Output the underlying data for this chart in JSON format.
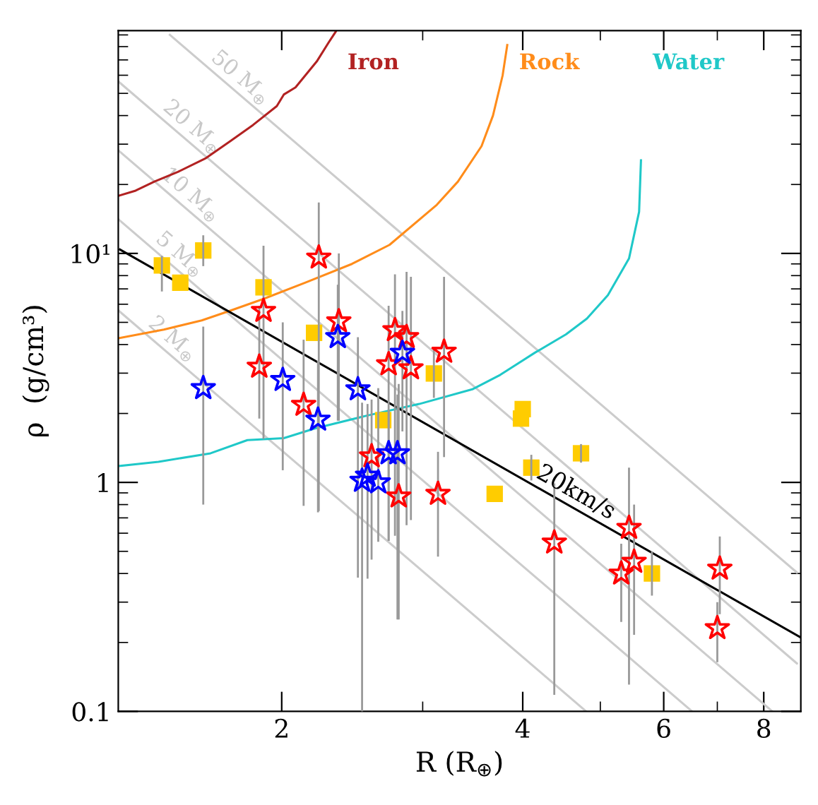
{
  "chart_data": {
    "type": "scatter",
    "xlabel": "R (R$_{⊕}$)",
    "ylabel": "ρ  (g/cm³)",
    "log": "xy",
    "xlim": [
      1.25,
      8.9
    ],
    "ylim": [
      0.1,
      94
    ],
    "xticks": [
      2,
      4,
      6,
      8
    ],
    "yticks": [
      0.1,
      1,
      {
        "value": 10,
        "label": "10¹"
      }
    ],
    "annotations": [
      {
        "text": "20km/s",
        "x": 4.66,
        "y": 0.755
      }
    ],
    "series": [
      {
        "type": "line",
        "name": "2 M$_{⊕}$",
        "color": "#cccccc",
        "x": [
          1.25,
          4.8
        ],
        "values": [
          5.64,
          0.1
        ]
      },
      {
        "type": "line",
        "name": "5 M$_{⊕}$",
        "color": "#cccccc",
        "x": [
          1.25,
          6.51
        ],
        "values": [
          14.1,
          0.1
        ]
      },
      {
        "type": "line",
        "name": "10 M$_{⊕}$",
        "color": "#cccccc",
        "x": [
          1.25,
          8.2
        ],
        "values": [
          28.2,
          0.1
        ]
      },
      {
        "type": "line",
        "name": "20 M$_{⊕}$",
        "color": "#cccccc",
        "x": [
          1.25,
          8.8
        ],
        "values": [
          56.4,
          0.162
        ]
      },
      {
        "type": "line",
        "name": "50 M$_{⊕}$",
        "color": "#cccccc",
        "x": [
          1.45,
          8.8
        ],
        "values": [
          90,
          0.404
        ]
      },
      {
        "type": "line",
        "name": "Iron",
        "color": "#b22222",
        "x": [
          1.254,
          1.314,
          1.387,
          1.484,
          1.609,
          1.722,
          1.842,
          1.972,
          2.012,
          2.081,
          2.212,
          2.288,
          2.336
        ],
        "values": [
          17.9,
          18.8,
          20.6,
          22.7,
          26.1,
          30.8,
          36.4,
          44.0,
          49.4,
          53.1,
          68.9,
          83.2,
          93
        ]
      },
      {
        "type": "line",
        "name": "Rock",
        "color": "#ff8c1a",
        "x": [
          1.254,
          1.425,
          1.589,
          1.722,
          1.893,
          2.139,
          2.448,
          2.727,
          3.124,
          3.32,
          3.553,
          3.672,
          3.775,
          3.826
        ],
        "values": [
          4.27,
          4.65,
          5.1,
          5.61,
          6.31,
          7.45,
          9.0,
          10.9,
          16.3,
          20.6,
          29.4,
          40.0,
          59.8,
          81.3
        ]
      },
      {
        "type": "line",
        "name": "Water",
        "color": "#1fc8c8",
        "x": [
          1.256,
          1.403,
          1.63,
          1.812,
          2.012,
          2.2,
          2.56,
          2.97,
          3.46,
          3.75,
          4.14,
          4.53,
          4.81,
          5.11,
          5.43,
          5.59,
          5.62
        ],
        "values": [
          1.18,
          1.23,
          1.34,
          1.53,
          1.56,
          1.72,
          1.96,
          2.2,
          2.55,
          2.95,
          3.68,
          4.43,
          5.19,
          6.57,
          9.5,
          15.2,
          25.5
        ]
      },
      {
        "type": "line",
        "color": "#000000",
        "x": [
          1.256,
          8.9
        ],
        "values": [
          10.4,
          0.21
        ]
      },
      {
        "marker": "square",
        "color": "#ffcc00",
        "x": [
          1.417,
          1.494,
          1.596,
          1.898,
          2.195,
          2.678,
          3.098,
          3.69,
          4.0,
          3.98,
          4.1,
          4.73,
          5.8
        ],
        "values": [
          8.87,
          7.45,
          10.3,
          7.11,
          4.5,
          1.87,
          2.99,
          0.891,
          2.09,
          1.9,
          1.16,
          1.34,
          0.4
        ],
        "errors": [
          [
            6.82,
            9.75
          ],
          null,
          [
            8.8,
            12.0
          ],
          null,
          null,
          null,
          [
            2.34,
            3.8
          ],
          null,
          null,
          null,
          [
            1.02,
            1.32
          ],
          [
            1.22,
            1.47
          ],
          [
            0.32,
            0.5
          ]
        ]
      },
      {
        "marker": "star",
        "color": "#ff0000",
        "x": [
          2.225,
          1.898,
          1.875,
          2.13,
          2.357,
          2.59,
          2.77,
          2.72,
          2.864,
          2.9,
          2.8,
          3.135,
          3.19,
          4.38,
          5.31,
          5.43,
          5.51,
          7.05,
          7.0
        ],
        "values": [
          9.59,
          5.61,
          3.2,
          2.18,
          5.05,
          1.3,
          4.62,
          3.28,
          4.31,
          3.15,
          0.868,
          0.891,
          3.72,
          0.546,
          0.4,
          0.633,
          0.45,
          0.42,
          0.231
        ],
        "errors": [
          [
            0.75,
            16.7
          ],
          [
            1.55,
            10.8
          ],
          [
            1.9,
            5.9
          ],
          [
            0.79,
            4.2
          ],
          [
            1.86,
            10.0
          ],
          [
            0.46,
            2.3
          ],
          [
            0.585,
            8.1
          ],
          [
            0.555,
            5.91
          ],
          [
            0.65,
            8.3
          ],
          [
            0.685,
            7.9
          ],
          [
            0.252,
            2.69
          ],
          [
            0.474,
            1.36
          ],
          [
            1.29,
            7.9
          ],
          [
            0.118,
            0.99
          ],
          [
            0.246,
            0.54
          ],
          [
            0.131,
            1.16
          ],
          [
            0.216,
            0.8
          ],
          [
            0.266,
            0.58
          ],
          [
            0.164,
            0.3
          ]
        ]
      },
      {
        "marker": "star",
        "color": "#0000ff",
        "x": [
          1.596,
          2.006,
          2.22,
          2.35,
          2.49,
          2.52,
          2.64,
          2.72,
          2.79,
          2.83,
          2.56
        ],
        "values": [
          2.58,
          2.8,
          1.88,
          4.31,
          2.55,
          1.016,
          1.0,
          1.34,
          1.34,
          3.68,
          1.07
        ],
        "errors": [
          [
            0.8,
            4.79
          ],
          [
            1.13,
            5.0
          ],
          [
            0.74,
            3.4
          ],
          [
            1.86,
            7.3
          ],
          [
            0.384,
            4.31
          ],
          [
            0.1,
            2.23
          ],
          [
            0.55,
            2.58
          ],
          [
            0.555,
            2.07
          ],
          [
            0.252,
            2.42
          ],
          [
            1.67,
            5.61
          ],
          [
            0.38,
            2.2
          ]
        ]
      }
    ]
  }
}
